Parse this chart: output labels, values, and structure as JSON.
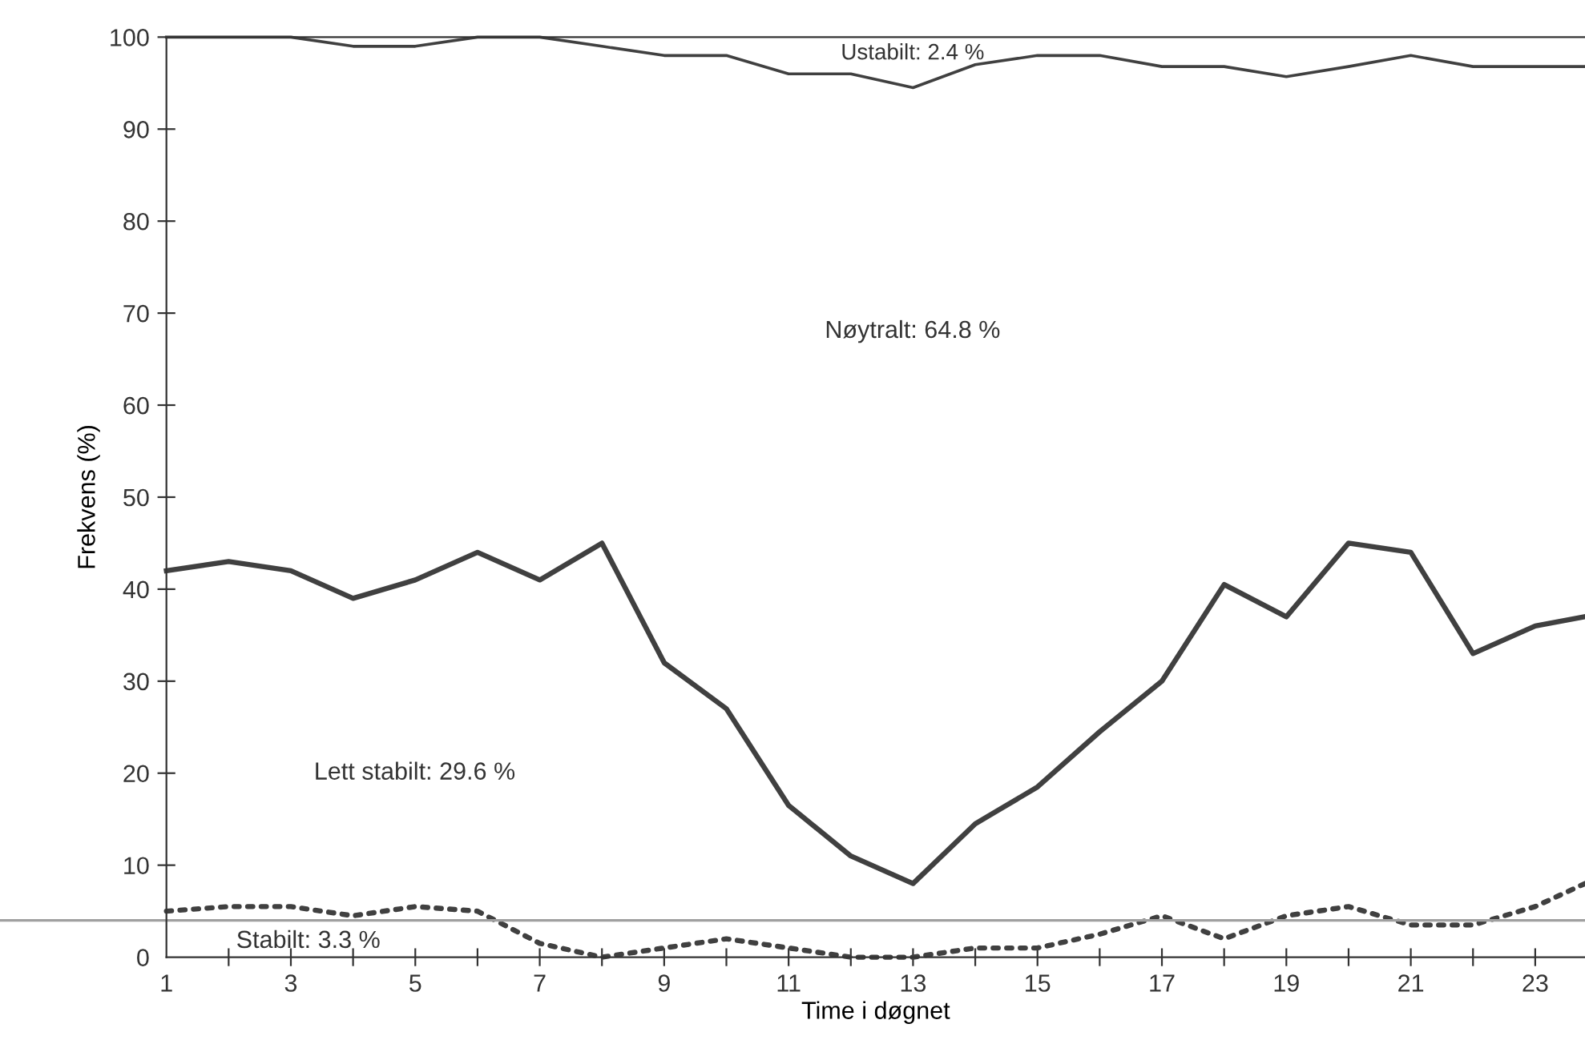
{
  "chart_data": {
    "type": "line",
    "xlabel": "Time i døgnet",
    "ylabel": "Frekvens (%)",
    "x": [
      1,
      2,
      3,
      4,
      5,
      6,
      7,
      8,
      9,
      10,
      11,
      12,
      13,
      14,
      15,
      16,
      17,
      18,
      19,
      20,
      21,
      22,
      23,
      23.8
    ],
    "xlim": [
      1,
      23.8
    ],
    "xticks": [
      1,
      {
        "value": 2,
        "label": null
      },
      3,
      {
        "value": 4,
        "label": null
      },
      5,
      {
        "value": 6,
        "label": null
      },
      7,
      {
        "value": 8,
        "label": null
      },
      9,
      {
        "value": 10,
        "label": null
      },
      11,
      {
        "value": 12,
        "label": null
      },
      13,
      {
        "value": 14,
        "label": null
      },
      15,
      {
        "value": 16,
        "label": null
      },
      17,
      {
        "value": 18,
        "label": null
      },
      19,
      {
        "value": 20,
        "label": null
      },
      21,
      {
        "value": 22,
        "label": null
      },
      23
    ],
    "ylim": [
      0,
      100
    ],
    "yticks": [
      0,
      10,
      20,
      30,
      40,
      50,
      60,
      70,
      80,
      90,
      100
    ],
    "grid": false,
    "legend": false,
    "series": [
      {
        "color": "#404040",
        "line_style": "solid",
        "values": [
          100,
          100,
          100,
          99,
          99,
          100,
          100,
          99,
          98,
          98,
          96,
          96,
          94.5,
          97,
          98,
          98,
          96.8,
          96.8,
          95.7,
          96.8,
          98,
          96.8,
          96.8,
          96.8
        ]
      },
      {
        "color": "#404040",
        "line_style": "solid",
        "values": [
          42,
          43,
          42,
          39,
          41,
          44,
          41,
          45,
          32,
          27,
          16.5,
          11,
          8,
          14.5,
          18.5,
          24.5,
          30,
          40.5,
          37,
          45,
          44,
          33,
          36,
          37
        ]
      },
      {
        "color": "#404040",
        "line_style": "dotted",
        "values": [
          5,
          5.5,
          5.5,
          4.5,
          5.5,
          5,
          1.5,
          0,
          1,
          2,
          1,
          0,
          0,
          1,
          1,
          2.5,
          4.5,
          2,
          4.5,
          5.5,
          3.5,
          3.5,
          5.5,
          8
        ]
      }
    ],
    "ref_lines": [
      {
        "axis": "y",
        "value": 4,
        "color": "#a0a0a0"
      }
    ],
    "annotations": [
      "Ustabilt: 2.4 %",
      "Nøytralt: 64.8 %",
      "Lett stabilt: 29.6 %",
      "Stabilt: 3.3 %"
    ]
  }
}
